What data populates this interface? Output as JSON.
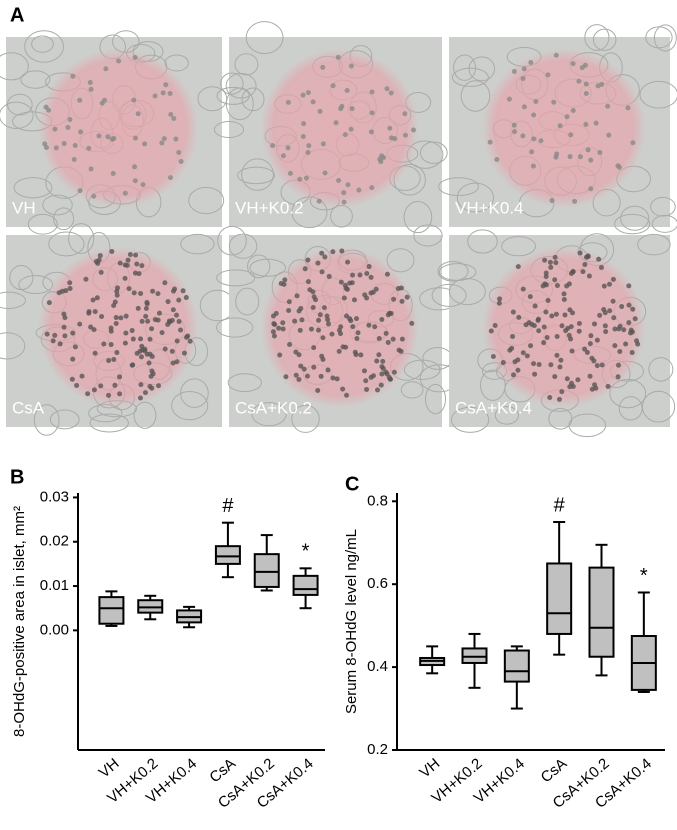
{
  "panel_a": {
    "label": "A",
    "images": [
      "VH",
      "VH+K0.2",
      "VH+K0.4",
      "CsA",
      "CsA+K0.2",
      "CsA+K0.4"
    ]
  },
  "chart_data": [
    {
      "type": "box",
      "panel": "B",
      "ylabel": "8-OHdG-positive area in islet, mm²",
      "categories": [
        "VH",
        "VH+K0.2",
        "VH+K0.4",
        "CsA",
        "CsA+K0.2",
        "CsA+K0.4"
      ],
      "min": [
        0.001,
        0.0025,
        0.0007,
        0.012,
        0.009,
        0.005
      ],
      "q1": [
        0.0015,
        0.004,
        0.0018,
        0.015,
        0.0098,
        0.008
      ],
      "median": [
        0.005,
        0.0052,
        0.003,
        0.0167,
        0.0132,
        0.0093
      ],
      "q3": [
        0.0075,
        0.0068,
        0.0045,
        0.019,
        0.0172,
        0.0123
      ],
      "max": [
        0.0088,
        0.0078,
        0.0053,
        0.0243,
        0.0215,
        0.014
      ],
      "ylim": [
        -0.027,
        0.031
      ],
      "yticks": [
        {
          "value": 0,
          "label": "0.00"
        },
        0.01,
        0.02,
        0.03
      ],
      "color": "#c0c0c0",
      "annotations": [
        {
          "text": "#",
          "category": "CsA"
        },
        {
          "text": "*",
          "category": "CsA+K0.4"
        }
      ]
    },
    {
      "type": "box",
      "panel": "C",
      "ylabel": "Serum 8-OHdG level  ng/mL",
      "categories": [
        "VH",
        "VH+K0.2",
        "VH+K0.4",
        "CsA",
        "CsA+K0.2",
        "CsA+K0.4"
      ],
      "min": [
        0.385,
        0.35,
        0.3,
        0.43,
        0.38,
        0.34
      ],
      "q1": [
        0.405,
        0.41,
        0.365,
        0.48,
        0.425,
        0.345
      ],
      "median": [
        0.415,
        0.425,
        0.39,
        0.53,
        0.495,
        0.41
      ],
      "q3": [
        0.422,
        0.445,
        0.44,
        0.65,
        0.64,
        0.475
      ],
      "max": [
        0.45,
        0.48,
        0.45,
        0.75,
        0.695,
        0.58
      ],
      "ylim": [
        0.2,
        0.82
      ],
      "yticks": [
        0.2,
        0.4,
        0.6,
        0.8
      ],
      "color": "#c0c0c0",
      "annotations": [
        {
          "text": "#",
          "category": "CsA"
        },
        {
          "text": "*",
          "category": "CsA+K0.4"
        }
      ]
    }
  ]
}
